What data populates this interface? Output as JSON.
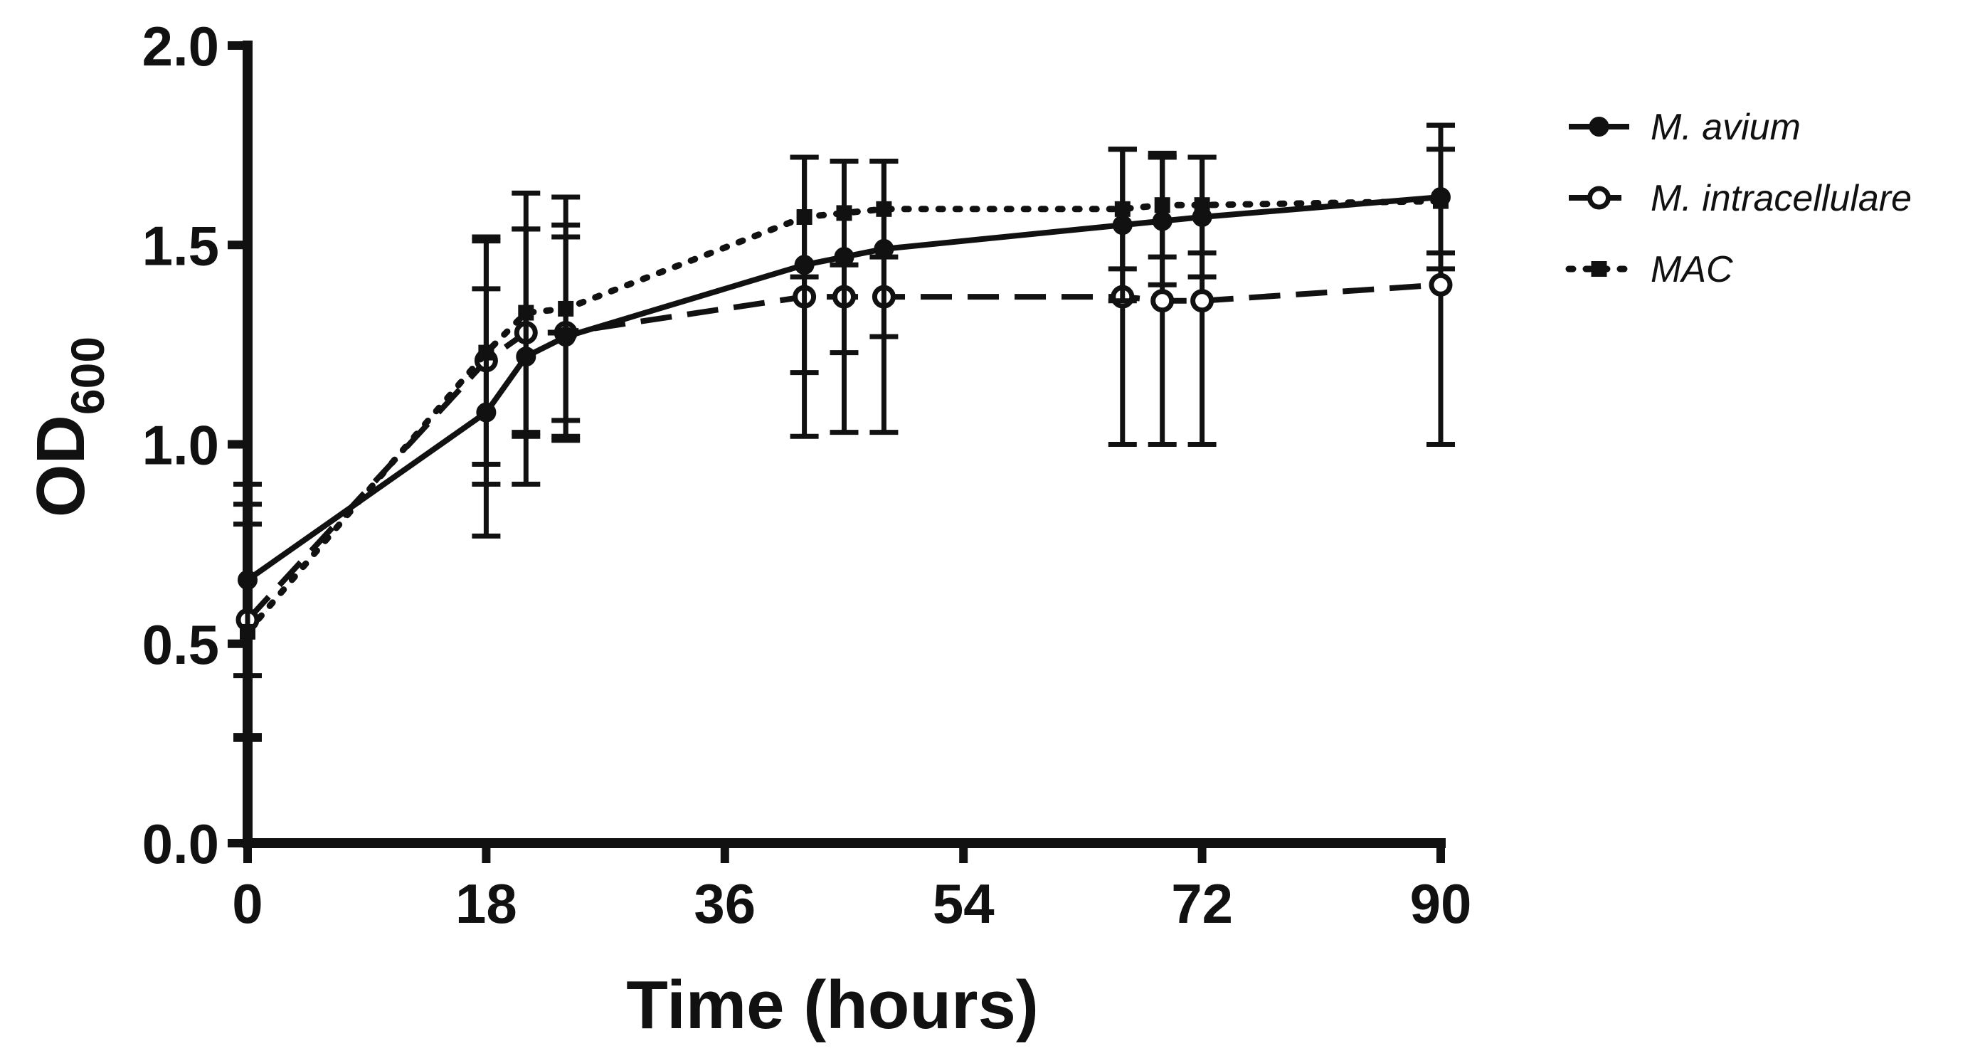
{
  "chart_data": {
    "type": "line",
    "xlabel": "Time (hours)",
    "ylabel_main": "OD",
    "ylabel_sub": "600",
    "xlim": [
      0,
      90
    ],
    "ylim": [
      0.0,
      2.0
    ],
    "x_ticks": [
      0,
      18,
      36,
      54,
      72,
      90
    ],
    "x_tick_labels": [
      "0",
      "18",
      "36",
      "54",
      "72",
      "90"
    ],
    "y_ticks": [
      0.0,
      0.5,
      1.0,
      1.5,
      2.0
    ],
    "y_tick_labels": [
      "0.0",
      "0.5",
      "1.0",
      "1.5",
      "2.0"
    ],
    "grid": false,
    "legend_position": "top-right, outside plot",
    "colors": {
      "line": "#111111",
      "background": "#ffffff"
    },
    "series": [
      {
        "name": "M. avium",
        "style": "solid",
        "marker": "filled-circle",
        "x": [
          0,
          18,
          21,
          24,
          42,
          45,
          48,
          66,
          69,
          72,
          90
        ],
        "y": [
          0.66,
          1.08,
          1.22,
          1.27,
          1.45,
          1.47,
          1.49,
          1.55,
          1.56,
          1.57,
          1.62
        ],
        "err": [
          0.24,
          0.31,
          0.32,
          0.25,
          0.27,
          0.24,
          0.22,
          0.19,
          0.16,
          0.15,
          0.18
        ]
      },
      {
        "name": "M. intracellulare",
        "style": "dashed",
        "marker": "open-circle",
        "x": [
          0,
          18,
          21,
          24,
          42,
          45,
          48,
          66,
          69,
          72,
          90
        ],
        "y": [
          0.56,
          1.21,
          1.28,
          1.28,
          1.37,
          1.37,
          1.37,
          1.37,
          1.36,
          1.36,
          1.4
        ],
        "err": [
          0.29,
          0.31,
          0.26,
          0.27,
          0.35,
          0.34,
          0.34,
          0.37,
          0.36,
          0.36,
          0.4
        ]
      },
      {
        "name": "MAC",
        "style": "dotted",
        "marker": "filled-square",
        "x": [
          0,
          18,
          21,
          24,
          42,
          45,
          48,
          66,
          69,
          72,
          90
        ],
        "y": [
          0.53,
          1.23,
          1.33,
          1.34,
          1.57,
          1.58,
          1.59,
          1.59,
          1.6,
          1.6,
          1.61
        ],
        "err": [
          0.27,
          0.28,
          0.3,
          0.28,
          0.15,
          0.13,
          0.12,
          0.15,
          0.13,
          0.12,
          0.13
        ]
      }
    ]
  }
}
